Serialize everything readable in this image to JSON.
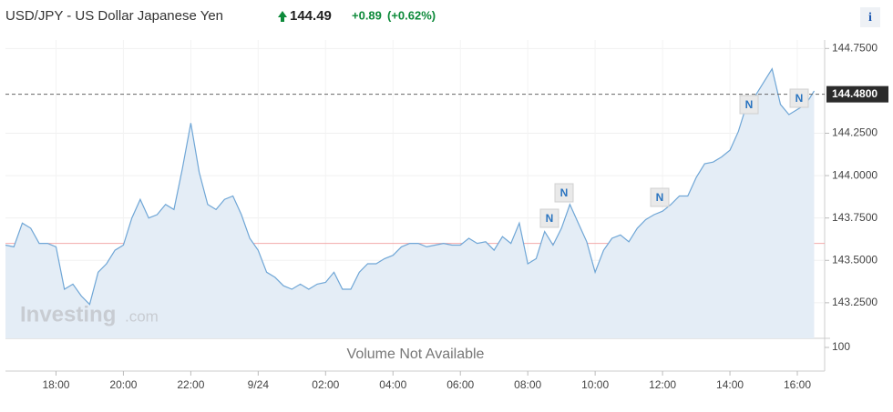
{
  "header": {
    "title": "USD/JPY - US Dollar Japanese Yen",
    "price": "144.49",
    "change": "+0.89",
    "change_pct": "(+0.62%)",
    "info": "i"
  },
  "watermark": {
    "brand": "Investing",
    "suffix": ".com"
  },
  "chart_data": {
    "type": "area",
    "categories": [
      null,
      null,
      null,
      null,
      null,
      null,
      "18:00",
      null,
      null,
      null,
      null,
      null,
      null,
      null,
      "20:00",
      null,
      null,
      null,
      null,
      null,
      null,
      null,
      "22:00",
      null,
      null,
      null,
      null,
      null,
      null,
      null,
      "9/24",
      null,
      null,
      null,
      null,
      null,
      null,
      null,
      "02:00",
      null,
      null,
      null,
      null,
      null,
      null,
      null,
      "04:00",
      null,
      null,
      null,
      null,
      null,
      null,
      null,
      "06:00",
      null,
      null,
      null,
      null,
      null,
      null,
      null,
      "08:00",
      null,
      null,
      null,
      null,
      null,
      null,
      null,
      "10:00",
      null,
      null,
      null,
      null,
      null,
      null,
      null,
      "12:00",
      null,
      null,
      null,
      null,
      null,
      null,
      null,
      "14:00",
      null,
      null,
      null,
      null,
      null,
      null,
      null,
      "16:00",
      null,
      null
    ],
    "series": [
      {
        "name": "USD/JPY",
        "color": "#6fa6d6",
        "values": [
          143.59,
          143.58,
          143.72,
          143.69,
          143.6,
          143.6,
          143.58,
          143.33,
          143.36,
          143.29,
          143.24,
          143.43,
          143.48,
          143.56,
          143.59,
          143.75,
          143.86,
          143.75,
          143.77,
          143.83,
          143.8,
          144.04,
          144.31,
          144.02,
          143.83,
          143.8,
          143.86,
          143.88,
          143.77,
          143.63,
          143.56,
          143.43,
          143.4,
          143.35,
          143.33,
          143.36,
          143.33,
          143.36,
          143.37,
          143.43,
          143.33,
          143.33,
          143.43,
          143.48,
          143.48,
          143.51,
          143.53,
          143.58,
          143.6,
          143.6,
          143.58,
          143.59,
          143.6,
          143.59,
          143.59,
          143.63,
          143.6,
          143.61,
          143.56,
          143.64,
          143.6,
          143.72,
          143.48,
          143.51,
          143.67,
          143.59,
          143.69,
          143.83,
          143.72,
          143.61,
          143.43,
          143.56,
          143.63,
          143.65,
          143.61,
          143.69,
          143.74,
          143.77,
          143.79,
          143.83,
          143.88,
          143.88,
          143.99,
          144.07,
          144.08,
          144.11,
          144.15,
          144.26,
          144.42,
          144.47,
          144.55,
          144.63,
          144.42,
          144.36,
          144.39,
          144.42,
          144.5
        ]
      }
    ],
    "ylim": [
      143.04,
      144.8
    ],
    "yticks": [
      {
        "value": 143.25,
        "label": "143.2500"
      },
      {
        "value": 143.5,
        "label": "143.5000"
      },
      {
        "value": 143.75,
        "label": "143.7500"
      },
      {
        "value": 144.0,
        "label": "144.0000"
      },
      {
        "value": 144.25,
        "label": "144.2500"
      },
      {
        "value": 144.75,
        "label": "144.7500"
      }
    ],
    "last_price": {
      "value": 144.48,
      "label": "144.4800"
    },
    "prev_close": 143.6,
    "grid": true,
    "news_markers": [
      "N",
      "N",
      "N",
      "N",
      "N"
    ],
    "volume_label": "Volume Not Available",
    "volume_ticks": [
      100
    ]
  }
}
